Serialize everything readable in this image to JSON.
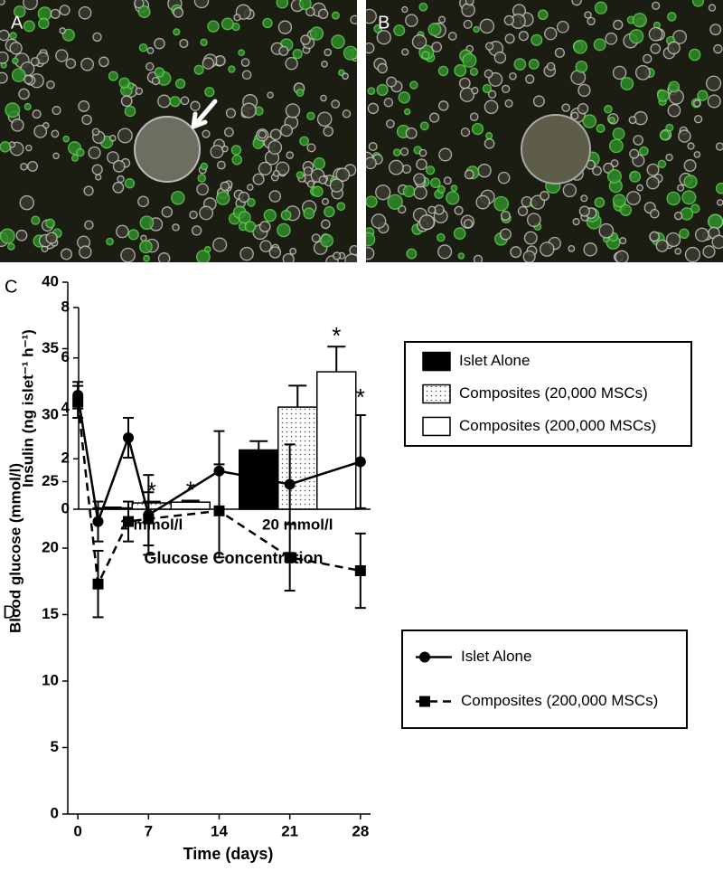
{
  "images": [
    {
      "label": "A"
    },
    {
      "label": "B"
    }
  ],
  "chart_data": [
    {
      "type": "bar",
      "panel": "C",
      "y_label": "Insulin (ng islet⁻¹ h⁻¹)",
      "x_label": "Glucose Concentration",
      "categories": [
        "2 mmol/l",
        "20 mmol/l"
      ],
      "series": [
        {
          "name": "Islet Alone",
          "color": "#000000",
          "pattern": "solid",
          "values": [
            0.05,
            2.35
          ],
          "errors": [
            0.02,
            0.35
          ]
        },
        {
          "name": "Composites (20,000 MSCs)",
          "color": "#ffffff",
          "pattern": "dots",
          "values": [
            0.25,
            4.05
          ],
          "errors": [
            0.05,
            0.85
          ]
        },
        {
          "name": "Composites (200,000 MSCs)",
          "color": "#ffffff",
          "pattern": "none",
          "values": [
            0.28,
            5.45
          ],
          "errors": [
            0.06,
            1.0
          ]
        }
      ],
      "ylim": [
        0,
        8
      ],
      "yticks": [
        0,
        2,
        4,
        6,
        8
      ],
      "annotations": [
        {
          "text": "*",
          "category": "2 mmol/l",
          "series": "Composites (20,000 MSCs)"
        },
        {
          "text": "*",
          "category": "2 mmol/l",
          "series": "Composites (200,000 MSCs)"
        },
        {
          "text": "*",
          "category": "20 mmol/l",
          "series": "Composites (200,000 MSCs)"
        }
      ],
      "legend": "right"
    },
    {
      "type": "line",
      "panel": "D",
      "y_label": "Blood glucose (mmol/l)",
      "x_label": "Time (days)",
      "x": [
        0,
        2,
        5,
        7,
        14,
        21,
        28
      ],
      "series": [
        {
          "name": "Islet Alone",
          "color": "#000000",
          "marker": "circle",
          "dash": "solid",
          "values": [
            31.5,
            22,
            28.3,
            22.5,
            25.8,
            24.8,
            26.5
          ],
          "errors": [
            1,
            1.5,
            1.5,
            3,
            3,
            3,
            3.5
          ]
        },
        {
          "name": "Composites (200,000 MSCs)",
          "color": "#000000",
          "marker": "square",
          "dash": "dashed",
          "values": [
            31,
            17.3,
            22,
            22.2,
            22.8,
            19.3,
            18.3
          ],
          "errors": [
            1.2,
            2.5,
            1.5,
            2,
            3.5,
            2.5,
            2.8
          ]
        }
      ],
      "xlim": [
        -1,
        29
      ],
      "xticks": [
        0,
        7,
        14,
        21,
        28
      ],
      "ylim": [
        0,
        40
      ],
      "yticks": [
        0,
        5,
        10,
        15,
        20,
        25,
        30,
        35,
        40
      ],
      "annotations": [
        {
          "text": "*",
          "x": 28,
          "series": "Islet Alone"
        }
      ],
      "legend": "right"
    }
  ]
}
